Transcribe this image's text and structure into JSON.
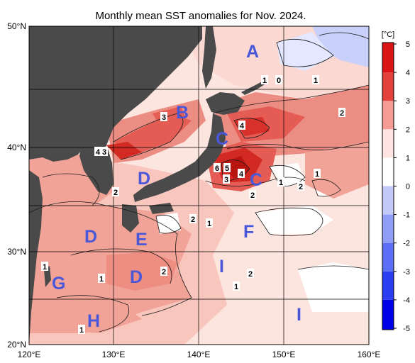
{
  "title": "Monthly mean SST anomalies for Nov. 2024.",
  "lat_labels": [
    "50°N",
    "40°N",
    "30°N",
    "20°N"
  ],
  "lon_labels": [
    "120°E",
    "130°E",
    "140°E",
    "150°E",
    "160°E"
  ],
  "colorbar": {
    "unit": "[°C]",
    "ticks": [
      "5",
      "4",
      "3",
      "2",
      "1",
      "0",
      "-1",
      "-2",
      "-3",
      "-4",
      "-5"
    ],
    "colors": [
      "#0000e6",
      "#2a3df0",
      "#5c6ef5",
      "#8f9cf8",
      "#c3caf9",
      "#e8ebff",
      "#ffffff",
      "#ffe4e1",
      "#fcc2bd",
      "#f69b94",
      "#ee6f68",
      "#e4403c",
      "#d91414"
    ]
  },
  "regions": [
    "A",
    "B",
    "C",
    "C",
    "D",
    "D",
    "D",
    "D",
    "E",
    "F",
    "G",
    "H",
    "I",
    "I"
  ],
  "values": [
    "1",
    "0",
    "1",
    "2",
    "3",
    "4",
    "3",
    "4",
    "2",
    "6",
    "5",
    "3",
    "4",
    "1",
    "2",
    "2",
    "1",
    "2",
    "1",
    "2",
    "1",
    "2",
    "1",
    "1",
    "1",
    "1"
  ]
}
